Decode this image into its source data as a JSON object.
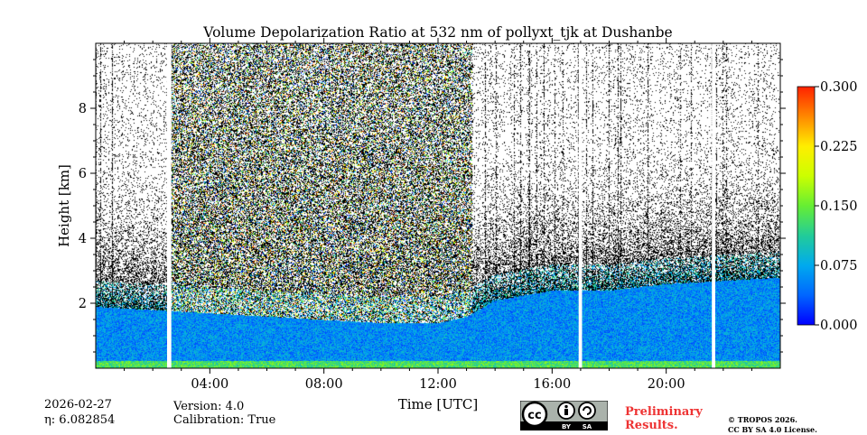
{
  "chart_data": {
    "type": "heatmap",
    "title": "Volume Depolarization Ratio at 532 nm of pollyxt_tjk at Dushanbe",
    "xlabel": "Time [UTC]",
    "ylabel": "Height [km]",
    "xlim": [
      0,
      24
    ],
    "ylim": [
      0,
      10
    ],
    "x_ticks": [
      {
        "value": 4,
        "label": "04:00"
      },
      {
        "value": 8,
        "label": "08:00"
      },
      {
        "value": 12,
        "label": "12:00"
      },
      {
        "value": 16,
        "label": "16:00"
      },
      {
        "value": 20,
        "label": "20:00"
      }
    ],
    "y_ticks": [
      {
        "value": 2,
        "label": "2"
      },
      {
        "value": 4,
        "label": "4"
      },
      {
        "value": 6,
        "label": "6"
      },
      {
        "value": 8,
        "label": "8"
      }
    ],
    "colorbar": {
      "min": 0.0,
      "max": 0.3,
      "ticks": [
        {
          "value": 0.0,
          "label": "0.000"
        },
        {
          "value": 0.075,
          "label": "0.075"
        },
        {
          "value": 0.15,
          "label": "0.150"
        },
        {
          "value": 0.225,
          "label": "0.225"
        },
        {
          "value": 0.3,
          "label": "0.300"
        }
      ],
      "colors": [
        "#0000ff",
        "#0066ff",
        "#00aaee",
        "#22cc99",
        "#66ee33",
        "#ccff00",
        "#ffee00",
        "#ff8800",
        "#ff2200"
      ]
    },
    "data_gaps_utc": [
      [
        2.5,
        2.65
      ],
      [
        16.93,
        17.05
      ],
      [
        21.6,
        21.72
      ]
    ],
    "layers": {
      "boundary_layer_top_km": {
        "time": [
          0,
          2,
          4,
          6,
          8,
          10,
          12,
          13,
          14,
          16,
          18,
          20,
          22,
          24
        ],
        "height": [
          1.9,
          1.8,
          1.7,
          1.6,
          1.5,
          1.4,
          1.4,
          1.6,
          2.1,
          2.4,
          2.4,
          2.6,
          2.7,
          2.8
        ]
      },
      "aerosol_depolarization_typical": 0.06,
      "noise_region_top_km": 10
    }
  },
  "footer": {
    "date": "2026-02-27",
    "eta": "η: 6.082854",
    "version": "Version: 4.0",
    "calibration": "Calibration: True",
    "preliminary_line1": "Preliminary",
    "preliminary_line2": "Results.",
    "copyright_line1": "© TROPOS 2026.",
    "copyright_line2": "CC BY SA 4.0 License.",
    "license_badge": {
      "by": "BY",
      "sa": "SA"
    }
  }
}
